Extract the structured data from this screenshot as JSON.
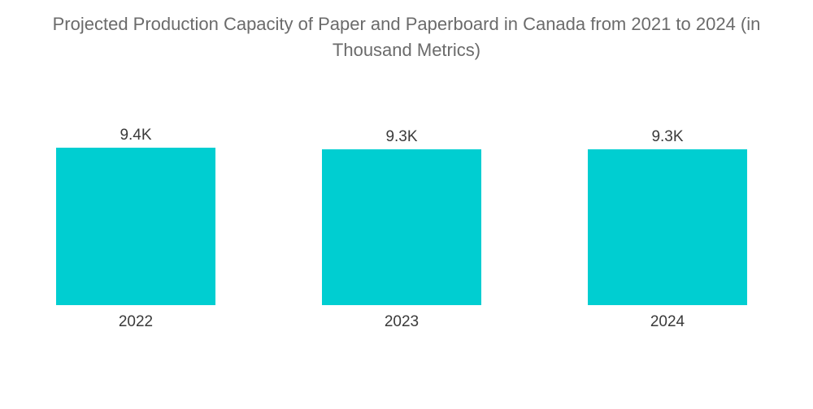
{
  "chart_data": {
    "type": "bar",
    "title": "Projected Production Capacity of Paper and Paperboard in Canada from 2021 to 2024 (in Thousand Metrics)",
    "title_lines": [
      "Projected Production Capacity of Paper and Paperboard in Canada from 2021 to 2024 (in",
      "Thousand Metrics)"
    ],
    "categories": [
      "2022",
      "2023",
      "2024"
    ],
    "values": [
      9400,
      9300,
      9300
    ],
    "data_labels": [
      "9.4K",
      "9.3K",
      "9.3K"
    ],
    "xlabel": "",
    "ylabel": "",
    "ylim": [
      0,
      9400
    ],
    "grid": false,
    "legend": "none",
    "bar_color": "#00CED1"
  }
}
